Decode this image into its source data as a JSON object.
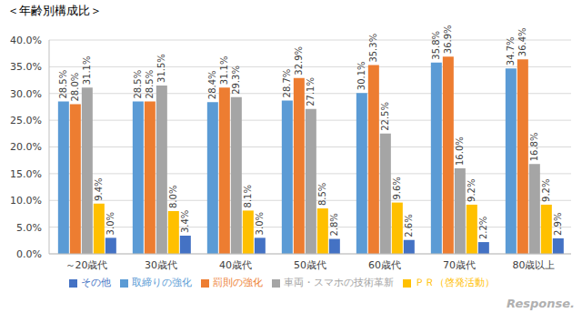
{
  "chart_data": {
    "type": "bar",
    "title": "＜年齢別構成比＞",
    "categories": [
      "～20歳代",
      "30歳代",
      "40歳代",
      "50歳代",
      "60歳代",
      "70歳代",
      "80歳以上"
    ],
    "series": [
      {
        "name": "取締りの強化",
        "color": "#5b9bd5",
        "values": [
          28.5,
          28.5,
          28.4,
          28.7,
          30.1,
          35.8,
          34.7
        ],
        "value_labels": [
          "28.5%",
          "28.5%",
          "28.4%",
          "28.7%",
          "30.1%",
          "35.8%",
          "34.7%"
        ]
      },
      {
        "name": "罰則の強化",
        "color": "#ed7d31",
        "values": [
          28.0,
          28.5,
          31.1,
          32.9,
          35.3,
          36.9,
          36.4
        ],
        "value_labels": [
          "28.0%",
          "28.5%",
          "31.1%",
          "32.9%",
          "35.3%",
          "36.9%",
          "36.4%"
        ]
      },
      {
        "name": "車両・スマホの技術革新",
        "color": "#a5a5a5",
        "values": [
          31.1,
          31.5,
          29.3,
          27.1,
          22.5,
          16.0,
          16.8
        ],
        "value_labels": [
          "31.1%",
          "31.5%",
          "29.3%",
          "27.1%",
          "22.5%",
          "16.0%",
          "16.8%"
        ]
      },
      {
        "name": "ＰＲ（啓発活動）",
        "color": "#ffc000",
        "values": [
          9.4,
          8.0,
          8.1,
          8.5,
          9.6,
          9.2,
          9.2
        ],
        "value_labels": [
          "9.4%",
          "8.0%",
          "8.1%",
          "8.5%",
          "9.6%",
          "9.2%",
          "9.2%"
        ]
      },
      {
        "name": "その他",
        "color": "#4472c4",
        "values": [
          3.0,
          3.4,
          3.0,
          2.8,
          2.6,
          2.2,
          2.9
        ],
        "value_labels": [
          "3.0%",
          "3.4%",
          "3.0%",
          "2.8%",
          "2.6%",
          "2.2%",
          "2.9%"
        ]
      }
    ],
    "ylim": [
      0,
      40
    ],
    "yticks": [
      {
        "value": 0,
        "label": "0.0%"
      },
      {
        "value": 5,
        "label": "5.0%"
      },
      {
        "value": 10,
        "label": "10.0%"
      },
      {
        "value": 15,
        "label": "15.0%"
      },
      {
        "value": 20,
        "label": "20.0%"
      },
      {
        "value": 25,
        "label": "25.0%"
      },
      {
        "value": 30,
        "label": "30.0%"
      },
      {
        "value": 35,
        "label": "35.0%"
      },
      {
        "value": 40,
        "label": "40.0%"
      }
    ],
    "grid": true,
    "legend": "bottom",
    "data_labels": true,
    "annotations": [
      "Response."
    ]
  }
}
